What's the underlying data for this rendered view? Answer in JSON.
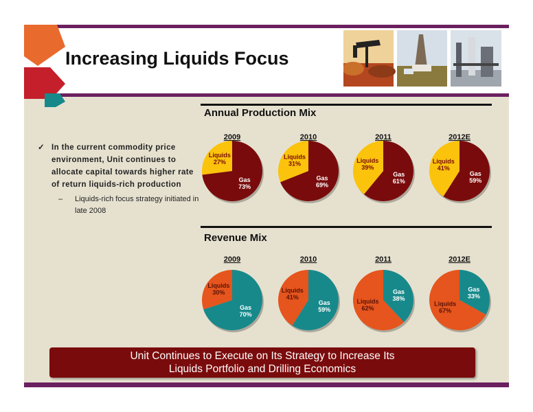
{
  "slide": {
    "title": "Increasing Liquids Focus",
    "bullet_main": "In the current commodity price environment, Unit continues to allocate capital towards higher rate of return liquids-rich production",
    "bullet_sub": "Liquids-rich focus strategy initiated in late 2008",
    "banner_line1": "Unit Continues to Execute on Its Strategy to Increase Its",
    "banner_line2": "Liquids Portfolio and Drilling Economics"
  },
  "colors": {
    "purple_bar": "#6b2060",
    "banner": "#7a0b0c",
    "production_gas": "#7a0b0c",
    "production_liquids": "#fbc30b",
    "revenue_gas": "#17898b",
    "revenue_liquids": "#e5551d"
  },
  "chart_data": [
    {
      "type": "pie",
      "title": "Annual Production Mix",
      "categories": [
        "2009",
        "2010",
        "2011",
        "2012E"
      ],
      "series": [
        {
          "name": "Liquids",
          "values": [
            27,
            31,
            39,
            41
          ]
        },
        {
          "name": "Gas",
          "values": [
            73,
            69,
            61,
            59
          ]
        }
      ]
    },
    {
      "type": "pie",
      "title": "Revenue Mix",
      "categories": [
        "2009",
        "2010",
        "2011",
        "2012E"
      ],
      "series": [
        {
          "name": "Liquids",
          "values": [
            30,
            41,
            62,
            67
          ]
        },
        {
          "name": "Gas",
          "values": [
            70,
            59,
            38,
            33
          ]
        }
      ]
    }
  ]
}
